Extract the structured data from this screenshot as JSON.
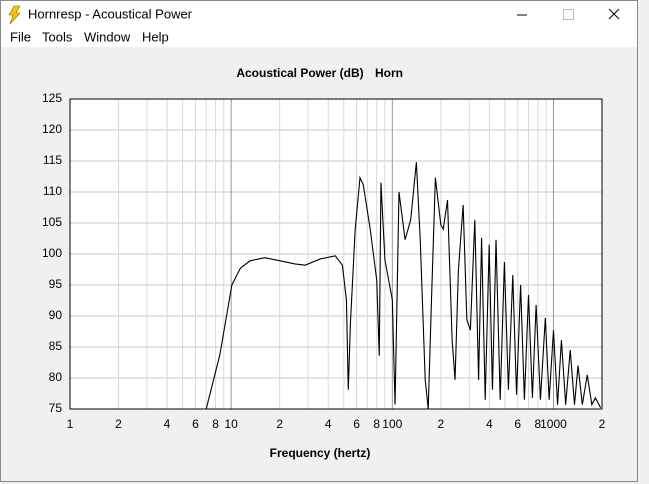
{
  "window": {
    "title": "Hornresp - Acoustical Power"
  },
  "menu": [
    "File",
    "Tools",
    "Window",
    "Help"
  ],
  "chart_data": {
    "type": "line",
    "title": "Acoustical Power (dB)",
    "subtitle": "Horn",
    "x_label": "Frequency (hertz)",
    "x_scale": "log",
    "grid": true,
    "xlim": [
      1,
      2000
    ],
    "ylim": [
      75,
      125
    ],
    "xticks": [
      1,
      2,
      4,
      6,
      8,
      10,
      {
        "value": 20,
        "label": "2"
      },
      {
        "value": 40,
        "label": "4"
      },
      {
        "value": 60,
        "label": "6"
      },
      {
        "value": 80,
        "label": "8"
      },
      100,
      {
        "value": 200,
        "label": "2"
      },
      {
        "value": 400,
        "label": "4"
      },
      {
        "value": 600,
        "label": "6"
      },
      {
        "value": 800,
        "label": "8"
      },
      1000,
      {
        "value": 2000,
        "label": "2"
      }
    ],
    "xminorticks": [
      3,
      5,
      7,
      9,
      30,
      50,
      70,
      90,
      300,
      500,
      700,
      900
    ],
    "yticks": [
      75,
      80,
      85,
      90,
      95,
      100,
      105,
      110,
      115,
      120,
      125
    ],
    "x": [
      7,
      8.5,
      10.1,
      11.4,
      13.1,
      16.2,
      20.1,
      24.9,
      28.8,
      35.7,
      44.3,
      49,
      51.9,
      53.3,
      55,
      58.8,
      63,
      66,
      73,
      80,
      83,
      85,
      90,
      100,
      104,
      110,
      120,
      130,
      141,
      149,
      160,
      167,
      175,
      185,
      200,
      207,
      220,
      235,
      245,
      257,
      275,
      290,
      305,
      325,
      343,
      358,
      377,
      399,
      418,
      440,
      467,
      496,
      525,
      559,
      590,
      625,
      660,
      700,
      740,
      780,
      830,
      890,
      940,
      1000,
      1060,
      1120,
      1190,
      1270,
      1350,
      1420,
      1510,
      1620,
      1730,
      1820,
      1960
    ],
    "series": [
      {
        "color": "#000000",
        "values": [
          75,
          83.7,
          95,
          97.7,
          98.9,
          99.4,
          98.9,
          98.4,
          98.2,
          99.2,
          99.7,
          98.2,
          92.6,
          78.1,
          89,
          103.9,
          112.3,
          111.2,
          103.9,
          95.8,
          83.6,
          111.5,
          99,
          92.6,
          75.7,
          110,
          102.3,
          105.5,
          114.8,
          102.3,
          79.7,
          75,
          92.6,
          112.3,
          104.7,
          104,
          108.7,
          86.1,
          79.7,
          97.4,
          107.9,
          89.4,
          87.7,
          105.5,
          79.7,
          102.6,
          76.5,
          101.5,
          78.1,
          102.3,
          76.5,
          98.7,
          78.1,
          96.6,
          77.3,
          95,
          76.5,
          93.4,
          76.8,
          91.8,
          76.5,
          89.7,
          76.5,
          87.7,
          75.7,
          86.1,
          75.7,
          84.5,
          75.7,
          82,
          75.7,
          80.5,
          75.7,
          76.8,
          75.2
        ]
      }
    ]
  }
}
